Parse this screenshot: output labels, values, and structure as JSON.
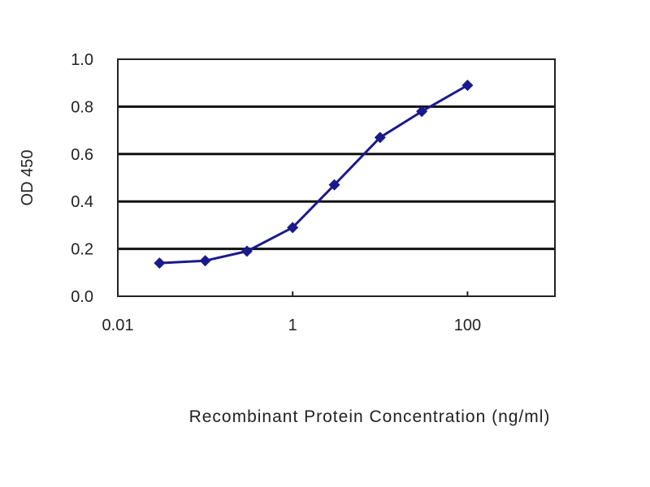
{
  "chart_data": {
    "type": "line",
    "title": "",
    "xlabel": "Recombinant Protein Concentration (ng/ml)",
    "ylabel": "OD 450",
    "x_scale": "log",
    "xlim": [
      0.01,
      1000
    ],
    "ylim": [
      0,
      1.0
    ],
    "x_ticks": [
      "0.01",
      "1",
      "100"
    ],
    "x_tick_values": [
      0.01,
      1,
      100
    ],
    "y_ticks": [
      "0.0",
      "0.2",
      "0.4",
      "0.6",
      "0.8",
      "1.0"
    ],
    "y_tick_values": [
      0,
      0.2,
      0.4,
      0.6,
      0.8,
      1.0
    ],
    "grid": "horizontal",
    "series": [
      {
        "x": [
          0.03,
          0.1,
          0.3,
          1,
          3,
          10,
          30,
          100
        ],
        "y": [
          0.14,
          0.15,
          0.19,
          0.29,
          0.47,
          0.67,
          0.78,
          0.89
        ],
        "color": "#1a1a8c",
        "marker": "diamond"
      }
    ]
  }
}
